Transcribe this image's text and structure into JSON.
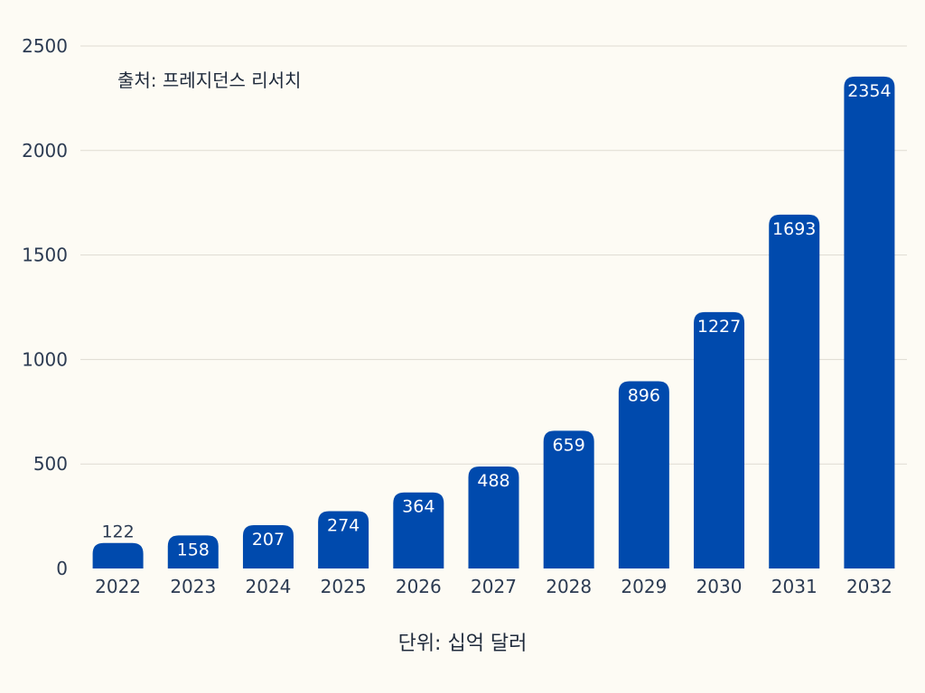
{
  "chart_data": {
    "type": "bar",
    "categories": [
      "2022",
      "2023",
      "2024",
      "2025",
      "2026",
      "2027",
      "2028",
      "2029",
      "2030",
      "2031",
      "2032"
    ],
    "values": [
      122,
      158,
      207,
      274,
      364,
      488,
      659,
      896,
      1227,
      1693,
      2354
    ],
    "ylim": [
      0,
      2500
    ],
    "yticks": [
      0,
      500,
      1000,
      1500,
      2000,
      2500
    ],
    "grid": true,
    "bar_color": "#004aad",
    "annotation": "출처: 프레지던스 리서치",
    "xlabel": "단위: 십억 달러"
  }
}
